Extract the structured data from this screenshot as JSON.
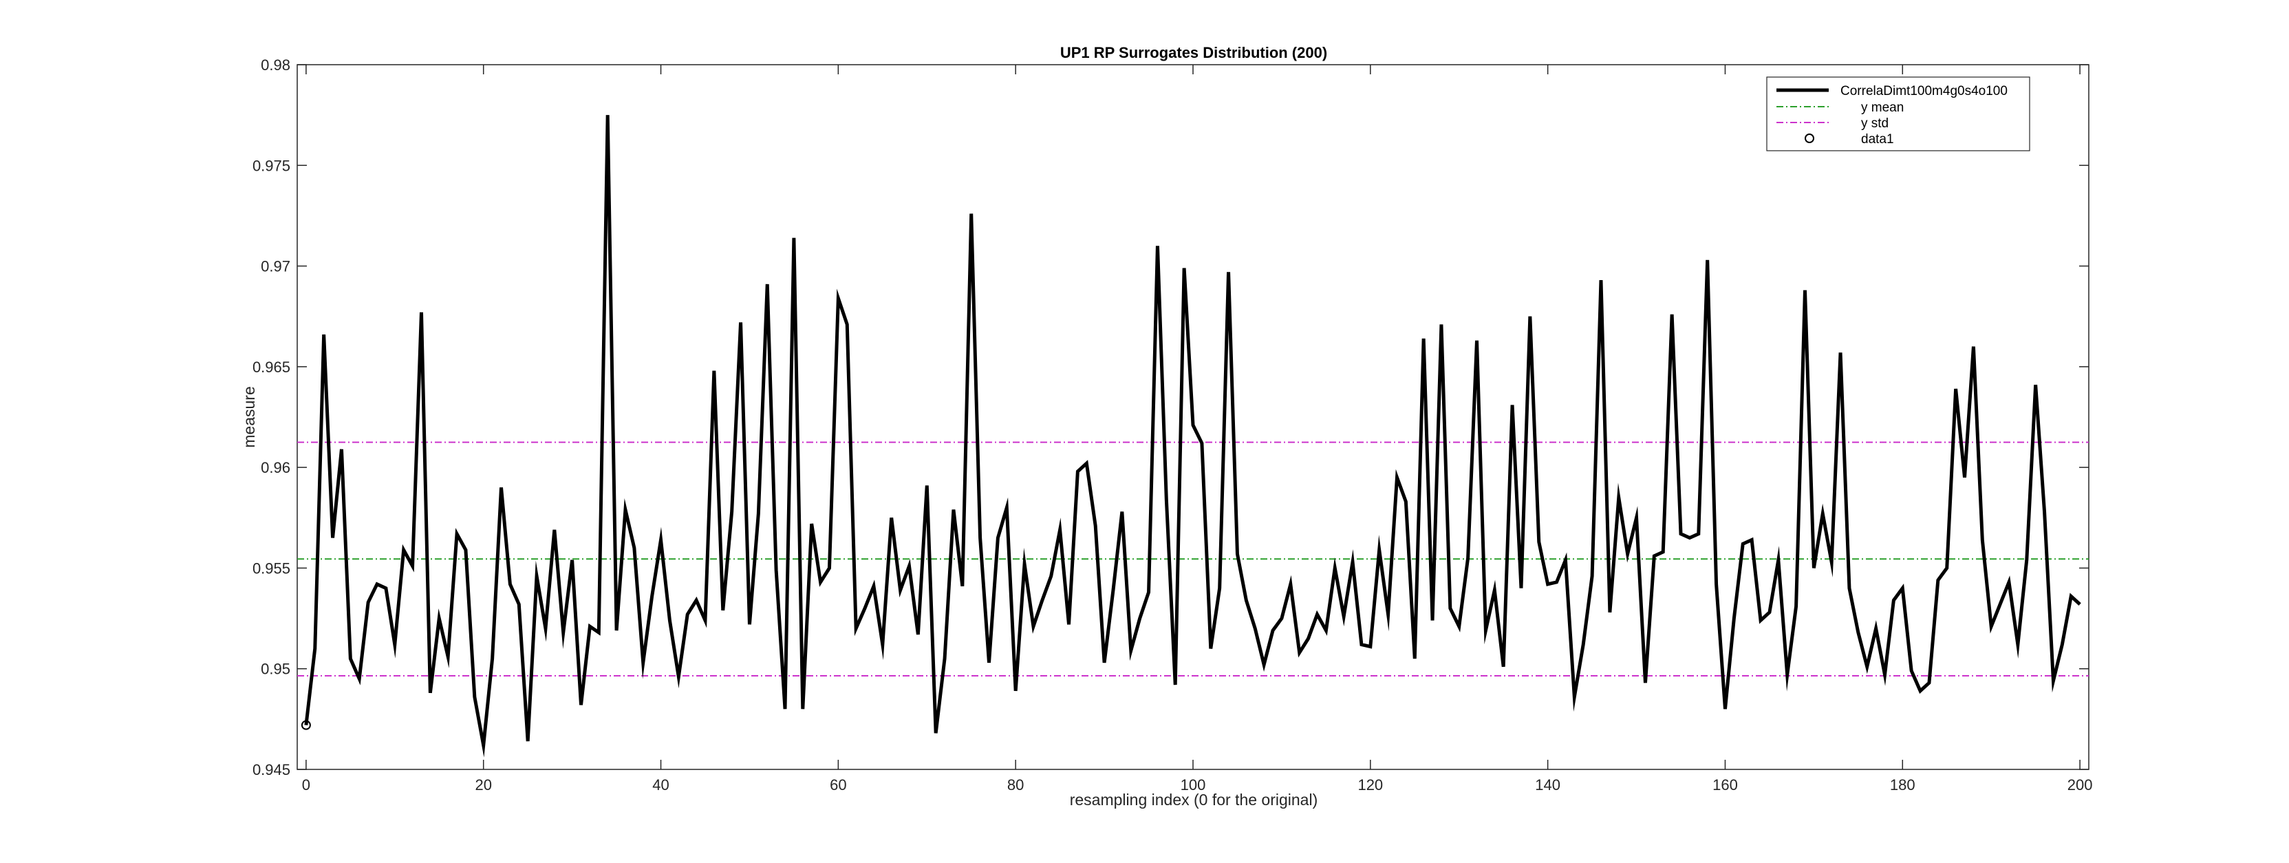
{
  "chart_data": {
    "type": "line",
    "title": "UP1 RP Surrogates Distribution (200)",
    "xlabel": "resampling index (0 for the original)",
    "ylabel": "measure",
    "xlim": [
      -1,
      201
    ],
    "ylim": [
      0.945,
      0.98
    ],
    "xticks": [
      0,
      20,
      40,
      60,
      80,
      100,
      120,
      140,
      160,
      180,
      200
    ],
    "yticks": [
      0.945,
      0.95,
      0.955,
      0.96,
      0.965,
      0.97,
      0.975,
      0.98
    ],
    "xtick_labels": [
      "0",
      "20",
      "40",
      "60",
      "80",
      "100",
      "120",
      "140",
      "160",
      "180",
      "200"
    ],
    "ytick_labels": [
      "0.945",
      "0.95",
      "0.955",
      "0.96",
      "0.965",
      "0.97",
      "0.975",
      "0.98"
    ],
    "grid": false,
    "legend_position": "top-right",
    "series": [
      {
        "name": "CorrelaDimt100m4g0s4o100",
        "style": "solid",
        "color": "#000000",
        "x_start": 0,
        "values": [
          0.9472,
          0.951,
          0.9666,
          0.9565,
          0.9609,
          0.9505,
          0.9495,
          0.9533,
          0.9542,
          0.954,
          0.9512,
          0.9559,
          0.9551,
          0.9677,
          0.9488,
          0.9525,
          0.9506,
          0.9567,
          0.9559,
          0.9486,
          0.9462,
          0.9505,
          0.959,
          0.9542,
          0.9532,
          0.9464,
          0.9546,
          0.952,
          0.9569,
          0.9518,
          0.9554,
          0.9482,
          0.9521,
          0.9518,
          0.9775,
          0.9519,
          0.9579,
          0.956,
          0.9503,
          0.9536,
          0.9564,
          0.9524,
          0.9496,
          0.9527,
          0.9534,
          0.9524,
          0.9648,
          0.9529,
          0.9578,
          0.9672,
          0.9522,
          0.9577,
          0.9691,
          0.9549,
          0.948,
          0.9714,
          0.948,
          0.9572,
          0.9543,
          0.955,
          0.9684,
          0.9671,
          0.952,
          0.953,
          0.9541,
          0.9512,
          0.9575,
          0.9539,
          0.9551,
          0.9517,
          0.9591,
          0.9468,
          0.9505,
          0.9579,
          0.9541,
          0.9726,
          0.9565,
          0.9503,
          0.9565,
          0.958,
          0.9489,
          0.9552,
          0.9521,
          0.9534,
          0.9546,
          0.9569,
          0.9522,
          0.9598,
          0.9602,
          0.9571,
          0.9503,
          0.9539,
          0.9578,
          0.9509,
          0.9525,
          0.9538,
          0.971,
          0.9584,
          0.9492,
          0.9699,
          0.9621,
          0.9612,
          0.951,
          0.954,
          0.9697,
          0.9557,
          0.9534,
          0.952,
          0.9502,
          0.9519,
          0.9525,
          0.9542,
          0.9508,
          0.9515,
          0.9527,
          0.9519,
          0.955,
          0.9526,
          0.9553,
          0.9512,
          0.9511,
          0.9559,
          0.9527,
          0.9595,
          0.9583,
          0.9505,
          0.9664,
          0.9524,
          0.9671,
          0.953,
          0.9521,
          0.9555,
          0.9663,
          0.9519,
          0.9539,
          0.9501,
          0.9631,
          0.954,
          0.9675,
          0.9563,
          0.9542,
          0.9543,
          0.9554,
          0.9486,
          0.9512,
          0.9546,
          0.9693,
          0.9528,
          0.9585,
          0.9557,
          0.9575,
          0.9493,
          0.9556,
          0.9558,
          0.9676,
          0.9567,
          0.9565,
          0.9567,
          0.9703,
          0.9542,
          0.948,
          0.9525,
          0.9562,
          0.9564,
          0.9524,
          0.9528,
          0.9554,
          0.9497,
          0.9531,
          0.9688,
          0.955,
          0.9577,
          0.9553,
          0.9657,
          0.954,
          0.9518,
          0.9501,
          0.952,
          0.9497,
          0.9534,
          0.954,
          0.9499,
          0.9489,
          0.9493,
          0.9544,
          0.955,
          0.9639,
          0.9595,
          0.966,
          0.9564,
          0.9521,
          0.9532,
          0.9543,
          0.9512,
          0.9554,
          0.9641,
          0.9578,
          0.9494,
          0.9512,
          0.9536,
          0.9532
        ]
      },
      {
        "name": "y mean",
        "style": "dash-dot",
        "color": "#2ca02c",
        "value": 0.95545
      },
      {
        "name": "y std",
        "style": "dash-dot",
        "color": "#cc33cc",
        "values": [
          0.96125,
          0.94965
        ]
      },
      {
        "name": "data1",
        "style": "circle-marker",
        "color": "#000000",
        "x": 0,
        "y": 0.9472
      }
    ]
  }
}
